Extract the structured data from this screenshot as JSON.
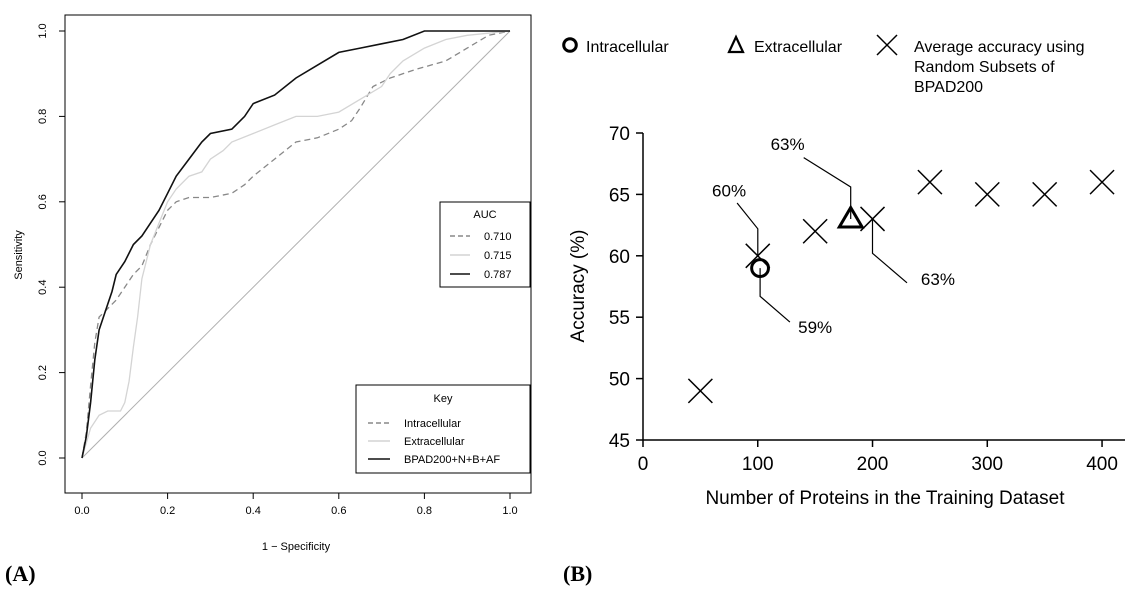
{
  "chart_data": [
    {
      "type": "line",
      "panel_label": "(A)",
      "xlabel": "1 − Specificity",
      "ylabel": "Sensitivity",
      "xlim": [
        0,
        1
      ],
      "ylim": [
        0,
        1
      ],
      "xticks": [
        "0.0",
        "0.2",
        "0.4",
        "0.6",
        "0.8",
        "1.0"
      ],
      "yticks": [
        "0.0",
        "0.2",
        "0.4",
        "0.6",
        "0.8",
        "1.0"
      ],
      "grid": false,
      "auc_legend": {
        "title": "AUC",
        "placement": "right-middle",
        "entries": [
          {
            "value": "0.710",
            "color": "#888888",
            "dash": "dashed"
          },
          {
            "value": "0.715",
            "color": "#d4d4d4",
            "dash": "solid"
          },
          {
            "value": "0.787",
            "color": "#111111",
            "dash": "solid"
          }
        ]
      },
      "key_legend": {
        "title": "Key",
        "placement": "bottom-right",
        "entries": [
          {
            "label": "Intracellular",
            "color": "#888888",
            "dash": "dashed"
          },
          {
            "label": "Extracellular",
            "color": "#d4d4d4",
            "dash": "solid"
          },
          {
            "label": "BPAD200+N+B+AF",
            "color": "#111111",
            "dash": "solid"
          }
        ]
      },
      "series": [
        {
          "name": "Intracellular",
          "color": "#888888",
          "dash": "dashed",
          "points": [
            [
              0,
              0
            ],
            [
              0.01,
              0.06
            ],
            [
              0.02,
              0.17
            ],
            [
              0.03,
              0.27
            ],
            [
              0.04,
              0.33
            ],
            [
              0.06,
              0.35
            ],
            [
              0.08,
              0.37
            ],
            [
              0.1,
              0.4
            ],
            [
              0.12,
              0.43
            ],
            [
              0.14,
              0.45
            ],
            [
              0.16,
              0.5
            ],
            [
              0.18,
              0.54
            ],
            [
              0.2,
              0.58
            ],
            [
              0.22,
              0.6
            ],
            [
              0.25,
              0.61
            ],
            [
              0.3,
              0.61
            ],
            [
              0.35,
              0.62
            ],
            [
              0.38,
              0.64
            ],
            [
              0.4,
              0.66
            ],
            [
              0.45,
              0.7
            ],
            [
              0.5,
              0.74
            ],
            [
              0.55,
              0.75
            ],
            [
              0.6,
              0.77
            ],
            [
              0.63,
              0.79
            ],
            [
              0.65,
              0.82
            ],
            [
              0.68,
              0.87
            ],
            [
              0.72,
              0.89
            ],
            [
              0.78,
              0.91
            ],
            [
              0.85,
              0.93
            ],
            [
              0.9,
              0.96
            ],
            [
              0.95,
              0.99
            ],
            [
              1.0,
              1.0
            ]
          ]
        },
        {
          "name": "Extracellular",
          "color": "#d4d4d4",
          "dash": "solid",
          "points": [
            [
              0,
              0
            ],
            [
              0.02,
              0.07
            ],
            [
              0.04,
              0.1
            ],
            [
              0.06,
              0.11
            ],
            [
              0.09,
              0.11
            ],
            [
              0.1,
              0.13
            ],
            [
              0.11,
              0.18
            ],
            [
              0.12,
              0.26
            ],
            [
              0.13,
              0.33
            ],
            [
              0.14,
              0.42
            ],
            [
              0.16,
              0.5
            ],
            [
              0.18,
              0.55
            ],
            [
              0.2,
              0.6
            ],
            [
              0.22,
              0.63
            ],
            [
              0.25,
              0.66
            ],
            [
              0.28,
              0.67
            ],
            [
              0.3,
              0.7
            ],
            [
              0.33,
              0.72
            ],
            [
              0.35,
              0.74
            ],
            [
              0.4,
              0.76
            ],
            [
              0.45,
              0.78
            ],
            [
              0.5,
              0.8
            ],
            [
              0.55,
              0.8
            ],
            [
              0.6,
              0.81
            ],
            [
              0.65,
              0.84
            ],
            [
              0.7,
              0.87
            ],
            [
              0.72,
              0.9
            ],
            [
              0.75,
              0.93
            ],
            [
              0.8,
              0.96
            ],
            [
              0.85,
              0.98
            ],
            [
              0.9,
              0.99
            ],
            [
              1.0,
              1.0
            ]
          ]
        },
        {
          "name": "BPAD200+N+B+AF",
          "color": "#111111",
          "dash": "solid",
          "points": [
            [
              0,
              0
            ],
            [
              0.01,
              0.05
            ],
            [
              0.02,
              0.13
            ],
            [
              0.03,
              0.23
            ],
            [
              0.04,
              0.3
            ],
            [
              0.06,
              0.36
            ],
            [
              0.07,
              0.39
            ],
            [
              0.08,
              0.43
            ],
            [
              0.1,
              0.46
            ],
            [
              0.12,
              0.5
            ],
            [
              0.14,
              0.52
            ],
            [
              0.16,
              0.55
            ],
            [
              0.18,
              0.58
            ],
            [
              0.2,
              0.62
            ],
            [
              0.22,
              0.66
            ],
            [
              0.25,
              0.7
            ],
            [
              0.28,
              0.74
            ],
            [
              0.3,
              0.76
            ],
            [
              0.35,
              0.77
            ],
            [
              0.38,
              0.8
            ],
            [
              0.4,
              0.83
            ],
            [
              0.45,
              0.85
            ],
            [
              0.5,
              0.89
            ],
            [
              0.55,
              0.92
            ],
            [
              0.6,
              0.95
            ],
            [
              0.65,
              0.96
            ],
            [
              0.7,
              0.97
            ],
            [
              0.75,
              0.98
            ],
            [
              0.8,
              1.0
            ],
            [
              0.9,
              1.0
            ],
            [
              1.0,
              1.0
            ]
          ]
        }
      ],
      "reference_line": {
        "from": [
          0,
          0
        ],
        "to": [
          1,
          1
        ],
        "color": "#b0b0b0"
      }
    },
    {
      "type": "scatter",
      "panel_label": "(B)",
      "xlabel": "Number of Proteins in the Training Dataset",
      "ylabel": "Accuracy (%)",
      "xlim": [
        0,
        420
      ],
      "ylim": [
        45,
        70
      ],
      "xticks": [
        "0",
        "100",
        "200",
        "300",
        "400"
      ],
      "yticks": [
        "45",
        "50",
        "55",
        "60",
        "65",
        "70"
      ],
      "grid": false,
      "legend": {
        "placement": "top",
        "entries": [
          {
            "marker": "circle",
            "label": "Intracellular"
          },
          {
            "marker": "triangle",
            "label": "Extracellular"
          },
          {
            "marker": "cross",
            "label_lines": [
              "Average accuracy using",
              "Random Subsets of",
              "BPAD200"
            ]
          }
        ]
      },
      "series": [
        {
          "marker": "cross",
          "points": [
            [
              50,
              49
            ],
            [
              100,
              60
            ],
            [
              150,
              62
            ],
            [
              200,
              63
            ],
            [
              250,
              66
            ],
            [
              300,
              65
            ],
            [
              350,
              65
            ],
            [
              400,
              66
            ]
          ]
        },
        {
          "marker": "circle",
          "points": [
            [
              102,
              59
            ]
          ]
        },
        {
          "marker": "triangle",
          "points": [
            [
              181,
              63
            ]
          ]
        }
      ],
      "annotations": [
        {
          "text": "60%",
          "target": [
            100,
            60
          ],
          "via": [
            [
              100,
              62.2
            ],
            [
              82,
              64.3
            ]
          ],
          "label_at": [
            75,
            65.3
          ]
        },
        {
          "text": "63%",
          "target": [
            181,
            63
          ],
          "via": [
            [
              181,
              65.6
            ],
            [
              140,
              68.0
            ]
          ],
          "label_at": [
            126,
            69.1
          ]
        },
        {
          "text": "63%",
          "target": [
            200,
            63
          ],
          "via": [
            [
              200,
              60.2
            ],
            [
              230,
              57.8
            ]
          ],
          "label_at": [
            257,
            58.1
          ]
        },
        {
          "text": "59%",
          "target": [
            102,
            59
          ],
          "via": [
            [
              102,
              56.7
            ],
            [
              128,
              54.6
            ]
          ],
          "label_at": [
            150,
            54.2
          ]
        }
      ]
    }
  ]
}
